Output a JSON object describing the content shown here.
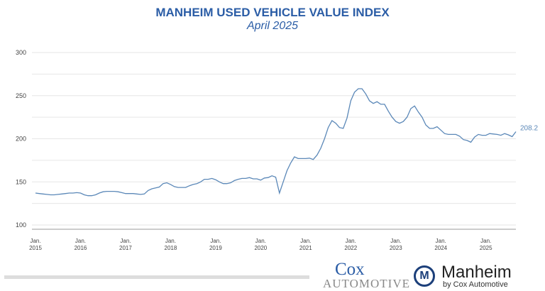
{
  "title": "MANHEIM USED VEHICLE VALUE INDEX",
  "subtitle": "April 2025",
  "logos": {
    "cox": "Cox",
    "automotive": "AUTOMOTIVE",
    "manheim": "Manheim",
    "by": "by Cox Automotive",
    "m": "M"
  },
  "colors": {
    "title": "#2b5da6",
    "line": "#5b88b8",
    "grid": "#e6e6e6"
  },
  "chart_data": {
    "type": "line",
    "title": "MANHEIM USED VEHICLE VALUE INDEX",
    "subtitle": "April 2025",
    "ylim": [
      100,
      300
    ],
    "yticks": [
      100,
      150,
      200,
      250,
      300
    ],
    "grid": true,
    "x_start": "2015-01",
    "frequency": "monthly",
    "xtick_labels": [
      [
        "Jan.",
        "2015"
      ],
      [
        "Jan.",
        "2016"
      ],
      [
        "Jan.",
        "2017"
      ],
      [
        "Jan.",
        "2018"
      ],
      [
        "Jan.",
        "2019"
      ],
      [
        "Jan.",
        "2020"
      ],
      [
        "Jan.",
        "2021"
      ],
      [
        "Jan.",
        "2022"
      ],
      [
        "Jan.",
        "2023"
      ],
      [
        "Jan.",
        "2024"
      ],
      [
        "Jan.",
        "2025"
      ]
    ],
    "last_label": "208.2",
    "values": [
      137,
      136.5,
      136,
      135.5,
      135,
      135,
      135.5,
      136,
      136.5,
      137,
      137,
      137.5,
      137,
      135,
      134,
      134,
      135,
      137,
      138.5,
      139,
      139,
      139,
      138.5,
      137.5,
      136.5,
      136.5,
      136.5,
      136,
      135.5,
      136,
      140,
      142,
      143,
      144,
      148,
      149,
      147,
      144.5,
      143.5,
      143.5,
      143.5,
      145.5,
      147,
      148,
      150,
      153,
      153,
      154,
      152.5,
      150,
      148,
      148,
      149,
      151.5,
      153,
      154,
      154,
      155,
      153.5,
      153.5,
      152,
      154.5,
      155,
      157,
      155.5,
      137,
      150,
      163,
      172,
      179,
      177,
      177,
      177,
      177.5,
      176,
      181,
      189,
      200,
      213,
      221,
      218,
      213,
      212,
      224,
      244,
      254,
      258,
      258,
      252,
      244,
      241,
      243,
      240,
      240,
      232,
      225,
      220,
      218,
      220,
      225,
      235,
      238,
      231,
      225,
      216,
      212,
      212,
      214,
      210,
      206,
      205,
      205,
      205,
      203,
      199,
      198,
      196,
      202,
      205,
      204,
      204,
      206,
      205.5,
      205,
      204,
      206,
      204.5,
      202.5,
      208.2
    ]
  }
}
